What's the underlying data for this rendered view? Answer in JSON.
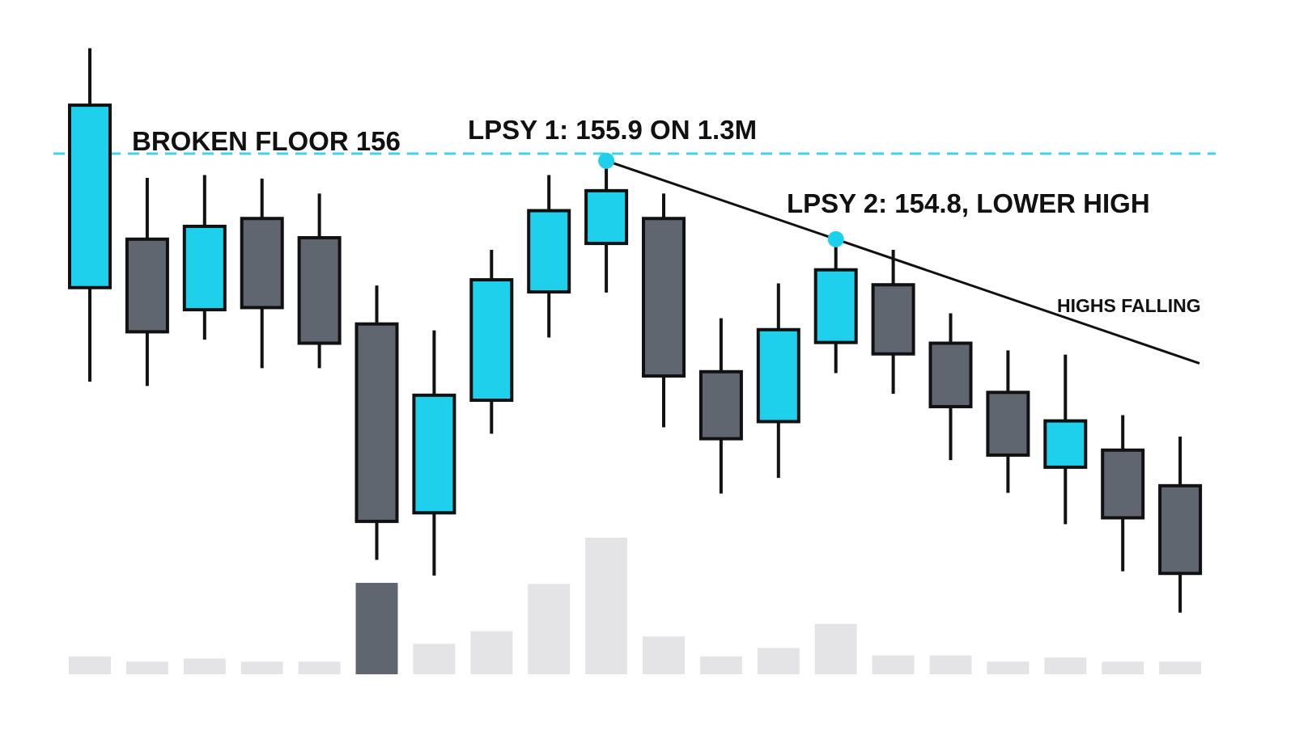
{
  "chart_data": {
    "type": "candlestick",
    "open": [
      154.12,
      154.8,
      153.81,
      155.09,
      154.82,
      153.61,
      150.96,
      152.54,
      154.06,
      154.74,
      155.09,
      152.94,
      152.24,
      153.35,
      154.16,
      153.34,
      152.65,
      151.6,
      151.84,
      151.34
    ],
    "high": [
      157.48,
      155.66,
      155.7,
      155.65,
      155.44,
      154.15,
      153.52,
      154.65,
      155.7,
      155.9,
      155.44,
      153.69,
      154.18,
      154.8,
      154.65,
      153.76,
      153.24,
      153.18,
      152.33,
      152.03
    ],
    "low": [
      152.8,
      152.74,
      153.39,
      152.99,
      152.99,
      150.3,
      150.08,
      152.07,
      153.42,
      154.05,
      152.16,
      151.23,
      151.45,
      152.92,
      152.63,
      151.7,
      151.24,
      150.8,
      150.14,
      149.56
    ],
    "close": [
      156.68,
      153.5,
      154.98,
      153.84,
      153.34,
      150.84,
      152.61,
      154.23,
      155.2,
      155.48,
      152.88,
      152.0,
      153.53,
      154.37,
      153.19,
      152.45,
      151.77,
      152.25,
      150.89,
      150.11
    ],
    "up_color": "#1fd0ec",
    "down_color": "#5f6670",
    "ylim": [
      149.5,
      157.6
    ],
    "volume": [
      0.17,
      0.12,
      0.15,
      0.12,
      0.12,
      0.87,
      0.29,
      0.41,
      0.86,
      1.3,
      0.36,
      0.17,
      0.25,
      0.48,
      0.18,
      0.18,
      0.12,
      0.16,
      0.12,
      0.12
    ],
    "volume_colors": [
      "#e4e4e6",
      "#e4e4e6",
      "#e4e4e6",
      "#e4e4e6",
      "#e4e4e6",
      "#5f6670",
      "#e4e4e6",
      "#e4e4e6",
      "#e4e4e6",
      "#e4e4e6",
      "#e4e4e6",
      "#e4e4e6",
      "#e4e4e6",
      "#e4e4e6",
      "#e4e4e6",
      "#e4e4e6",
      "#e4e4e6",
      "#e4e4e6",
      "#e4e4e6",
      "#e4e4e6"
    ],
    "volume_ylim": [
      0,
      1.5
    ],
    "floor": 156,
    "floor_color": "#3fd3e8",
    "annotations": [
      "BROKEN FLOOR 156",
      "LPSY 1: 155.9 ON 1.3M",
      "LPSY 2: 154.8, LOWER HIGH",
      "HIGHS FALLING"
    ]
  }
}
